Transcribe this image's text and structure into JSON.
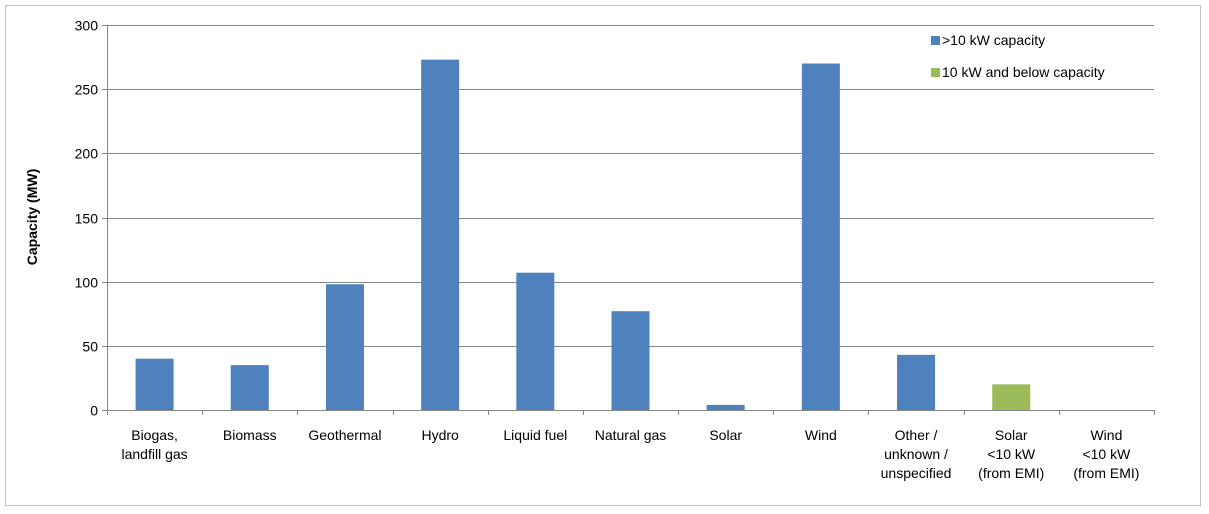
{
  "chart_data": {
    "type": "bar",
    "title": "",
    "xlabel": "",
    "ylabel": "Capacity (MW)",
    "ylim": [
      0,
      300
    ],
    "yticks": [
      0,
      50,
      100,
      150,
      200,
      250,
      300
    ],
    "grid": true,
    "legend_position": "top-right",
    "categories": [
      [
        "Biogas,",
        "landfill gas"
      ],
      [
        "Biomass"
      ],
      [
        "Geothermal"
      ],
      [
        "Hydro"
      ],
      [
        "Liquid fuel"
      ],
      [
        "Natural gas"
      ],
      [
        "Solar"
      ],
      [
        "Wind"
      ],
      [
        "Other /",
        "unknown /",
        "unspecified"
      ],
      [
        "Solar",
        "<10 kW",
        "(from EMI)"
      ],
      [
        "Wind",
        "<10 kW",
        "(from EMI)"
      ]
    ],
    "series": [
      {
        "name": ">10 kW capacity",
        "color": "#4f81bd",
        "values": [
          40,
          35,
          98,
          273,
          107,
          77,
          4,
          270,
          43,
          0,
          0
        ]
      },
      {
        "name": "10 kW and below capacity",
        "color": "#9bbb59",
        "values": [
          0,
          0,
          0,
          0,
          0,
          0,
          0,
          0,
          0,
          20,
          0
        ]
      }
    ]
  }
}
